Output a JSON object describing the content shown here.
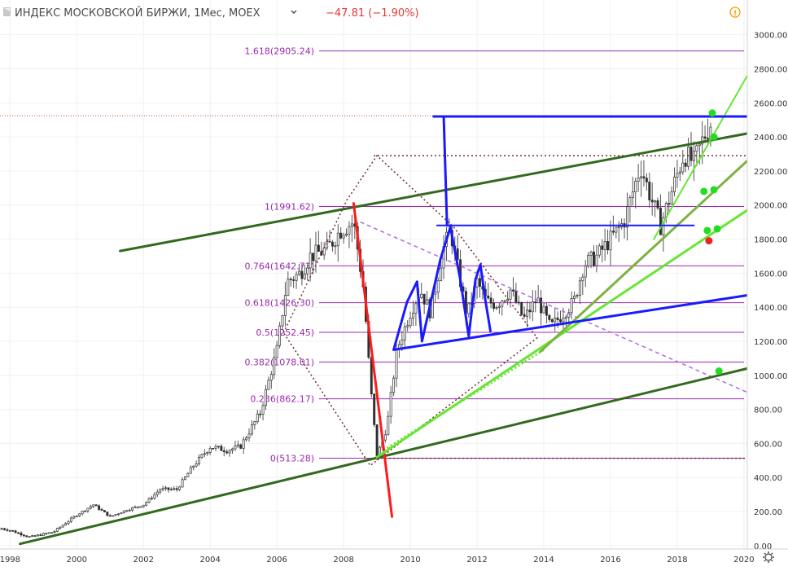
{
  "header": {
    "symbol": "ИНДЕКС МОСКОВСКОЙ БИРЖИ, 1Мес, MOEX",
    "change": "−47.81 (−1.90%)",
    "change_color": "#e53935",
    "alert_icon": "exclamation-circle-icon",
    "collapse_icon": "chevron-down-icon",
    "logo_icon": "flag-icon"
  },
  "footer": {
    "settings_icon": "gear-icon"
  },
  "chart_data": {
    "type": "candlestick",
    "interval": "1 month",
    "x_ticks": [
      "1998",
      "2000",
      "2002",
      "2004",
      "2006",
      "2008",
      "2010",
      "2012",
      "2014",
      "2016",
      "2018",
      "2020"
    ],
    "y_ticks": [
      "0.00",
      "200.00",
      "400.00",
      "600.00",
      "800.00",
      "1000.00",
      "1200.00",
      "1400.00",
      "1600.00",
      "1800.00",
      "2000.00",
      "2200.00",
      "2400.00",
      "2600.00",
      "2800.00",
      "3000.00"
    ],
    "ylim": [
      -20,
      3070
    ],
    "xlim": [
      1997.7,
      2020.1
    ],
    "colors": {
      "up": "#26a69a",
      "down": "#ef5350",
      "wick": "#555555",
      "fib": "#9c27b0"
    },
    "price_anchors": [
      [
        1997.75,
        100
      ],
      [
        1998.0,
        90
      ],
      [
        1998.6,
        50
      ],
      [
        1999.3,
        80
      ],
      [
        2000.0,
        180
      ],
      [
        2000.5,
        240
      ],
      [
        2001.0,
        170
      ],
      [
        2001.5,
        210
      ],
      [
        2002.0,
        240
      ],
      [
        2002.5,
        330
      ],
      [
        2003.0,
        330
      ],
      [
        2003.5,
        470
      ],
      [
        2004.0,
        580
      ],
      [
        2004.5,
        560
      ],
      [
        2004.9,
        580
      ],
      [
        2005.5,
        780
      ],
      [
        2006.0,
        1150
      ],
      [
        2006.3,
        1550
      ],
      [
        2006.7,
        1600
      ],
      [
        2007.0,
        1700
      ],
      [
        2007.5,
        1740
      ],
      [
        2007.9,
        1850
      ],
      [
        2008.3,
        1900
      ],
      [
        2008.6,
        1500
      ],
      [
        2008.8,
        950
      ],
      [
        2009.0,
        520
      ],
      [
        2009.3,
        700
      ],
      [
        2009.6,
        1150
      ],
      [
        2010.0,
        1370
      ],
      [
        2010.3,
        1500
      ],
      [
        2010.6,
        1370
      ],
      [
        2011.0,
        1750
      ],
      [
        2011.2,
        1850
      ],
      [
        2011.5,
        1550
      ],
      [
        2011.7,
        1350
      ],
      [
        2012.0,
        1550
      ],
      [
        2012.3,
        1430
      ],
      [
        2012.6,
        1420
      ],
      [
        2013.0,
        1500
      ],
      [
        2013.4,
        1330
      ],
      [
        2013.8,
        1450
      ],
      [
        2014.2,
        1280
      ],
      [
        2014.6,
        1370
      ],
      [
        2014.9,
        1430
      ],
      [
        2015.2,
        1650
      ],
      [
        2015.6,
        1700
      ],
      [
        2016.0,
        1800
      ],
      [
        2016.4,
        1900
      ],
      [
        2016.9,
        2230
      ],
      [
        2017.2,
        2050
      ],
      [
        2017.5,
        1880
      ],
      [
        2017.9,
        2120
      ],
      [
        2018.2,
        2300
      ],
      [
        2018.5,
        2250
      ],
      [
        2018.8,
        2400
      ],
      [
        2019.0,
        2480
      ]
    ],
    "fib_levels": [
      {
        "label": "1.618(2905.24)",
        "value": 2905.24
      },
      {
        "label": "1(1991.62)",
        "value": 1991.62
      },
      {
        "label": "0.764(1642.73)",
        "value": 1642.73
      },
      {
        "label": "0.618(1426.30)",
        "value": 1426.3
      },
      {
        "label": "0.5(1252.45)",
        "value": 1252.45
      },
      {
        "label": "0.382(1078.01)",
        "value": 1078.01
      },
      {
        "label": "0.236(862.17)",
        "value": 862.17
      },
      {
        "label": "0(513.28)",
        "value": 513.28
      }
    ],
    "trendlines": [
      {
        "name": "upper-channel",
        "color": "#33691e",
        "width": 3,
        "points": [
          [
            2001.3,
            1730
          ],
          [
            2020.1,
            2420
          ]
        ]
      },
      {
        "name": "lower-channel",
        "color": "#33691e",
        "width": 3,
        "points": [
          [
            1998.3,
            10
          ],
          [
            2020.1,
            1040
          ]
        ]
      },
      {
        "name": "crash-line",
        "color": "#ff1a1a",
        "width": 3,
        "points": [
          [
            2008.3,
            2010
          ],
          [
            2009.45,
            170
          ]
        ]
      },
      {
        "name": "green-support-1",
        "color": "#66e633",
        "width": 3,
        "points": [
          [
            2009.0,
            520
          ],
          [
            2020.1,
            1970
          ]
        ]
      },
      {
        "name": "green-support-2",
        "color": "#66e633",
        "width": 2,
        "points": [
          [
            2017.3,
            1800
          ],
          [
            2020.1,
            2760
          ]
        ]
      },
      {
        "name": "olive-trend",
        "color": "#7cb342",
        "width": 3,
        "points": [
          [
            2013.9,
            1140
          ],
          [
            2020.1,
            2260
          ]
        ]
      },
      {
        "name": "blue-lower-trend",
        "color": "#1a1aff",
        "width": 3,
        "points": [
          [
            2009.5,
            1150
          ],
          [
            2020.1,
            1470
          ]
        ]
      },
      {
        "name": "blue-top",
        "color": "#1a1aff",
        "width": 3,
        "points": [
          [
            2010.7,
            2520
          ],
          [
            2020.1,
            2520
          ]
        ]
      },
      {
        "name": "blue-neck",
        "color": "#1a1aff",
        "width": 2,
        "points": [
          [
            2010.8,
            1880
          ],
          [
            2018.5,
            1880
          ]
        ]
      },
      {
        "name": "blue-measure",
        "color": "#1a1aff",
        "width": 3,
        "points": [
          [
            2011.0,
            2520
          ],
          [
            2011.1,
            1880
          ]
        ]
      },
      {
        "name": "blue-zigzag",
        "color": "#1a1aff",
        "width": 3,
        "points": [
          [
            2009.5,
            1150
          ],
          [
            2009.9,
            1430
          ],
          [
            2010.2,
            1550
          ],
          [
            2010.35,
            1200
          ],
          [
            2010.6,
            1420
          ],
          [
            2010.9,
            1680
          ],
          [
            2011.2,
            1870
          ],
          [
            2011.5,
            1560
          ],
          [
            2011.75,
            1230
          ],
          [
            2011.95,
            1560
          ],
          [
            2012.1,
            1650
          ],
          [
            2012.25,
            1440
          ],
          [
            2012.4,
            1260
          ]
        ]
      }
    ],
    "dotted_lines": [
      {
        "name": "diamond",
        "color": "#6d2e2e",
        "points": [
          [
            2006.2,
            1250
          ],
          [
            2008.1,
            2030
          ],
          [
            2009.0,
            2290
          ],
          [
            2011.3,
            1870
          ],
          [
            2013.8,
            1220
          ],
          [
            2008.8,
            470
          ],
          [
            2006.2,
            1250
          ]
        ]
      },
      {
        "name": "dotted-2290",
        "color": "#6d2e2e",
        "points": [
          [
            2008.9,
            2290
          ],
          [
            2020.1,
            2290
          ]
        ]
      },
      {
        "name": "dotted-513",
        "color": "#6d2e2e",
        "points": [
          [
            2009.0,
            513
          ],
          [
            2020.1,
            513
          ]
        ]
      },
      {
        "name": "dashed-purple",
        "color": "#b06ae0",
        "points": [
          [
            2008.5,
            1900
          ],
          [
            2020.1,
            900
          ]
        ]
      },
      {
        "name": "dotted-green",
        "color": "#66e633",
        "points": [
          [
            2009.2,
            560
          ],
          [
            2014.0,
            1150
          ]
        ]
      }
    ],
    "last_price_line": {
      "value": 2525,
      "color": "#b05a3a"
    },
    "markers": [
      {
        "x": 2019.05,
        "y": 2540,
        "color": "#22dd22"
      },
      {
        "x": 2019.1,
        "y": 2400,
        "color": "#22dd22"
      },
      {
        "x": 2018.8,
        "y": 2080,
        "color": "#22dd22"
      },
      {
        "x": 2019.1,
        "y": 2090,
        "color": "#22dd22"
      },
      {
        "x": 2018.9,
        "y": 1850,
        "color": "#22dd22"
      },
      {
        "x": 2019.2,
        "y": 1860,
        "color": "#22dd22"
      },
      {
        "x": 2018.95,
        "y": 1790,
        "color": "#ee2222"
      },
      {
        "x": 2019.25,
        "y": 1025,
        "color": "#22dd22"
      }
    ]
  }
}
